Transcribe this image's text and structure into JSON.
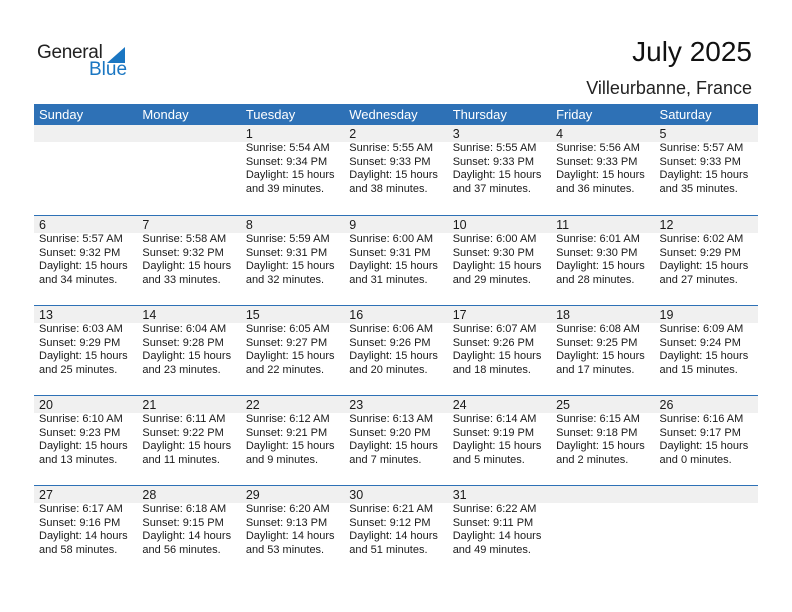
{
  "logo": {
    "word1": "General",
    "word2": "Blue"
  },
  "title": "July 2025",
  "location": "Villeurbanne, France",
  "days_of_week": [
    "Sunday",
    "Monday",
    "Tuesday",
    "Wednesday",
    "Thursday",
    "Friday",
    "Saturday"
  ],
  "colors": {
    "header": "#2e71b6",
    "brand": "#1a76c2",
    "day_band": "#f0f0f0"
  },
  "weeks": [
    [
      null,
      null,
      {
        "day": "1",
        "sunrise": "Sunrise: 5:54 AM",
        "sunset": "Sunset: 9:34 PM",
        "daylight": "Daylight: 15 hours",
        "daylight2": "and 39 minutes."
      },
      {
        "day": "2",
        "sunrise": "Sunrise: 5:55 AM",
        "sunset": "Sunset: 9:33 PM",
        "daylight": "Daylight: 15 hours",
        "daylight2": "and 38 minutes."
      },
      {
        "day": "3",
        "sunrise": "Sunrise: 5:55 AM",
        "sunset": "Sunset: 9:33 PM",
        "daylight": "Daylight: 15 hours",
        "daylight2": "and 37 minutes."
      },
      {
        "day": "4",
        "sunrise": "Sunrise: 5:56 AM",
        "sunset": "Sunset: 9:33 PM",
        "daylight": "Daylight: 15 hours",
        "daylight2": "and 36 minutes."
      },
      {
        "day": "5",
        "sunrise": "Sunrise: 5:57 AM",
        "sunset": "Sunset: 9:33 PM",
        "daylight": "Daylight: 15 hours",
        "daylight2": "and 35 minutes."
      }
    ],
    [
      {
        "day": "6",
        "sunrise": "Sunrise: 5:57 AM",
        "sunset": "Sunset: 9:32 PM",
        "daylight": "Daylight: 15 hours",
        "daylight2": "and 34 minutes."
      },
      {
        "day": "7",
        "sunrise": "Sunrise: 5:58 AM",
        "sunset": "Sunset: 9:32 PM",
        "daylight": "Daylight: 15 hours",
        "daylight2": "and 33 minutes."
      },
      {
        "day": "8",
        "sunrise": "Sunrise: 5:59 AM",
        "sunset": "Sunset: 9:31 PM",
        "daylight": "Daylight: 15 hours",
        "daylight2": "and 32 minutes."
      },
      {
        "day": "9",
        "sunrise": "Sunrise: 6:00 AM",
        "sunset": "Sunset: 9:31 PM",
        "daylight": "Daylight: 15 hours",
        "daylight2": "and 31 minutes."
      },
      {
        "day": "10",
        "sunrise": "Sunrise: 6:00 AM",
        "sunset": "Sunset: 9:30 PM",
        "daylight": "Daylight: 15 hours",
        "daylight2": "and 29 minutes."
      },
      {
        "day": "11",
        "sunrise": "Sunrise: 6:01 AM",
        "sunset": "Sunset: 9:30 PM",
        "daylight": "Daylight: 15 hours",
        "daylight2": "and 28 minutes."
      },
      {
        "day": "12",
        "sunrise": "Sunrise: 6:02 AM",
        "sunset": "Sunset: 9:29 PM",
        "daylight": "Daylight: 15 hours",
        "daylight2": "and 27 minutes."
      }
    ],
    [
      {
        "day": "13",
        "sunrise": "Sunrise: 6:03 AM",
        "sunset": "Sunset: 9:29 PM",
        "daylight": "Daylight: 15 hours",
        "daylight2": "and 25 minutes."
      },
      {
        "day": "14",
        "sunrise": "Sunrise: 6:04 AM",
        "sunset": "Sunset: 9:28 PM",
        "daylight": "Daylight: 15 hours",
        "daylight2": "and 23 minutes."
      },
      {
        "day": "15",
        "sunrise": "Sunrise: 6:05 AM",
        "sunset": "Sunset: 9:27 PM",
        "daylight": "Daylight: 15 hours",
        "daylight2": "and 22 minutes."
      },
      {
        "day": "16",
        "sunrise": "Sunrise: 6:06 AM",
        "sunset": "Sunset: 9:26 PM",
        "daylight": "Daylight: 15 hours",
        "daylight2": "and 20 minutes."
      },
      {
        "day": "17",
        "sunrise": "Sunrise: 6:07 AM",
        "sunset": "Sunset: 9:26 PM",
        "daylight": "Daylight: 15 hours",
        "daylight2": "and 18 minutes."
      },
      {
        "day": "18",
        "sunrise": "Sunrise: 6:08 AM",
        "sunset": "Sunset: 9:25 PM",
        "daylight": "Daylight: 15 hours",
        "daylight2": "and 17 minutes."
      },
      {
        "day": "19",
        "sunrise": "Sunrise: 6:09 AM",
        "sunset": "Sunset: 9:24 PM",
        "daylight": "Daylight: 15 hours",
        "daylight2": "and 15 minutes."
      }
    ],
    [
      {
        "day": "20",
        "sunrise": "Sunrise: 6:10 AM",
        "sunset": "Sunset: 9:23 PM",
        "daylight": "Daylight: 15 hours",
        "daylight2": "and 13 minutes."
      },
      {
        "day": "21",
        "sunrise": "Sunrise: 6:11 AM",
        "sunset": "Sunset: 9:22 PM",
        "daylight": "Daylight: 15 hours",
        "daylight2": "and 11 minutes."
      },
      {
        "day": "22",
        "sunrise": "Sunrise: 6:12 AM",
        "sunset": "Sunset: 9:21 PM",
        "daylight": "Daylight: 15 hours",
        "daylight2": "and 9 minutes."
      },
      {
        "day": "23",
        "sunrise": "Sunrise: 6:13 AM",
        "sunset": "Sunset: 9:20 PM",
        "daylight": "Daylight: 15 hours",
        "daylight2": "and 7 minutes."
      },
      {
        "day": "24",
        "sunrise": "Sunrise: 6:14 AM",
        "sunset": "Sunset: 9:19 PM",
        "daylight": "Daylight: 15 hours",
        "daylight2": "and 5 minutes."
      },
      {
        "day": "25",
        "sunrise": "Sunrise: 6:15 AM",
        "sunset": "Sunset: 9:18 PM",
        "daylight": "Daylight: 15 hours",
        "daylight2": "and 2 minutes."
      },
      {
        "day": "26",
        "sunrise": "Sunrise: 6:16 AM",
        "sunset": "Sunset: 9:17 PM",
        "daylight": "Daylight: 15 hours",
        "daylight2": "and 0 minutes."
      }
    ],
    [
      {
        "day": "27",
        "sunrise": "Sunrise: 6:17 AM",
        "sunset": "Sunset: 9:16 PM",
        "daylight": "Daylight: 14 hours",
        "daylight2": "and 58 minutes."
      },
      {
        "day": "28",
        "sunrise": "Sunrise: 6:18 AM",
        "sunset": "Sunset: 9:15 PM",
        "daylight": "Daylight: 14 hours",
        "daylight2": "and 56 minutes."
      },
      {
        "day": "29",
        "sunrise": "Sunrise: 6:20 AM",
        "sunset": "Sunset: 9:13 PM",
        "daylight": "Daylight: 14 hours",
        "daylight2": "and 53 minutes."
      },
      {
        "day": "30",
        "sunrise": "Sunrise: 6:21 AM",
        "sunset": "Sunset: 9:12 PM",
        "daylight": "Daylight: 14 hours",
        "daylight2": "and 51 minutes."
      },
      {
        "day": "31",
        "sunrise": "Sunrise: 6:22 AM",
        "sunset": "Sunset: 9:11 PM",
        "daylight": "Daylight: 14 hours",
        "daylight2": "and 49 minutes."
      },
      null,
      null
    ]
  ]
}
